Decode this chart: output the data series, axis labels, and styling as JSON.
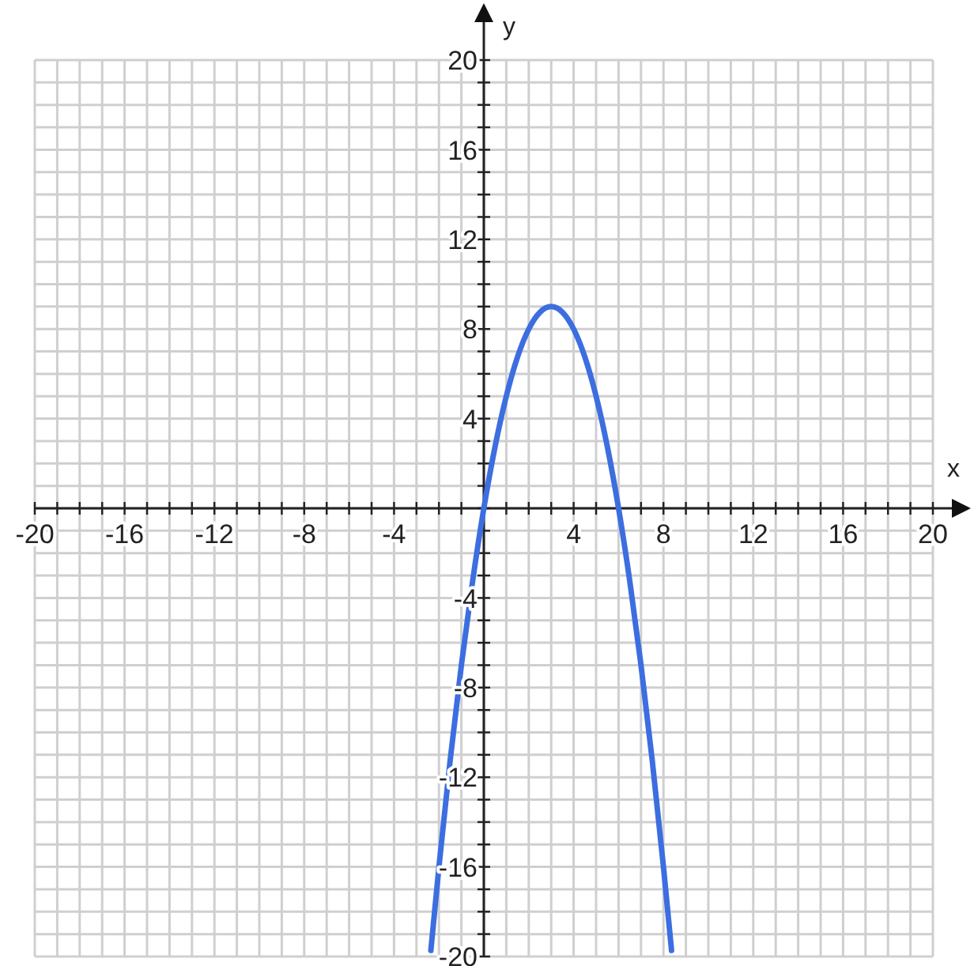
{
  "chart_data": {
    "type": "line",
    "xlabel": "x",
    "ylabel": "y",
    "x": [
      -2.36,
      -2,
      -1.5,
      -1,
      -0.5,
      0,
      0.5,
      1,
      1.5,
      2,
      2.5,
      3,
      3.5,
      4,
      4.5,
      5,
      5.5,
      6,
      6.5,
      7,
      7.5,
      8,
      8.36
    ],
    "series": [
      {
        "color": "#3d6ee0",
        "values": [
          -19.73,
          -16,
          -11.25,
          -7,
          -3.25,
          0,
          2.75,
          5,
          6.75,
          8,
          8.75,
          9,
          8.75,
          8,
          6.75,
          5,
          2.75,
          0,
          -3.25,
          -7,
          -11.25,
          -16,
          -19.73
        ]
      }
    ],
    "xlim": [
      -20,
      20
    ],
    "ylim": [
      -20,
      20
    ],
    "xticks": [
      -20,
      {
        "value": -19,
        "label": null
      },
      {
        "value": -18,
        "label": null
      },
      {
        "value": -17,
        "label": null
      },
      -16,
      {
        "value": -15,
        "label": null
      },
      {
        "value": -14,
        "label": null
      },
      {
        "value": -13,
        "label": null
      },
      -12,
      {
        "value": -11,
        "label": null
      },
      {
        "value": -10,
        "label": null
      },
      {
        "value": -9,
        "label": null
      },
      -8,
      {
        "value": -7,
        "label": null
      },
      {
        "value": -6,
        "label": null
      },
      {
        "value": -5,
        "label": null
      },
      -4,
      {
        "value": -3,
        "label": null
      },
      {
        "value": -2,
        "label": null
      },
      {
        "value": -1,
        "label": null
      },
      {
        "value": 0,
        "label": null
      },
      {
        "value": 1,
        "label": null
      },
      {
        "value": 2,
        "label": null
      },
      {
        "value": 3,
        "label": null
      },
      4,
      {
        "value": 5,
        "label": null
      },
      {
        "value": 6,
        "label": null
      },
      {
        "value": 7,
        "label": null
      },
      8,
      {
        "value": 9,
        "label": null
      },
      {
        "value": 10,
        "label": null
      },
      {
        "value": 11,
        "label": null
      },
      12,
      {
        "value": 13,
        "label": null
      },
      {
        "value": 14,
        "label": null
      },
      {
        "value": 15,
        "label": null
      },
      16,
      {
        "value": 17,
        "label": null
      },
      {
        "value": 18,
        "label": null
      },
      {
        "value": 19,
        "label": null
      },
      20
    ],
    "yticks": [
      -20,
      {
        "value": -19,
        "label": null
      },
      {
        "value": -18,
        "label": null
      },
      {
        "value": -17,
        "label": null
      },
      -16,
      {
        "value": -15,
        "label": null
      },
      {
        "value": -14,
        "label": null
      },
      {
        "value": -13,
        "label": null
      },
      -12,
      {
        "value": -11,
        "label": null
      },
      {
        "value": -10,
        "label": null
      },
      {
        "value": -9,
        "label": null
      },
      -8,
      {
        "value": -7,
        "label": null
      },
      {
        "value": -6,
        "label": null
      },
      {
        "value": -5,
        "label": null
      },
      -4,
      {
        "value": -3,
        "label": null
      },
      {
        "value": -2,
        "label": null
      },
      {
        "value": -1,
        "label": null
      },
      {
        "value": 0,
        "label": null
      },
      {
        "value": 1,
        "label": null
      },
      {
        "value": 2,
        "label": null
      },
      {
        "value": 3,
        "label": null
      },
      4,
      {
        "value": 5,
        "label": null
      },
      {
        "value": 6,
        "label": null
      },
      {
        "value": 7,
        "label": null
      },
      8,
      {
        "value": 9,
        "label": null
      },
      {
        "value": 10,
        "label": null
      },
      {
        "value": 11,
        "label": null
      },
      12,
      {
        "value": 13,
        "label": null
      },
      {
        "value": 14,
        "label": null
      },
      {
        "value": 15,
        "label": null
      },
      16,
      {
        "value": 17,
        "label": null
      },
      {
        "value": 18,
        "label": null
      },
      {
        "value": 19,
        "label": null
      },
      20
    ],
    "grid": true,
    "marker": "none",
    "line_style": "solid"
  }
}
